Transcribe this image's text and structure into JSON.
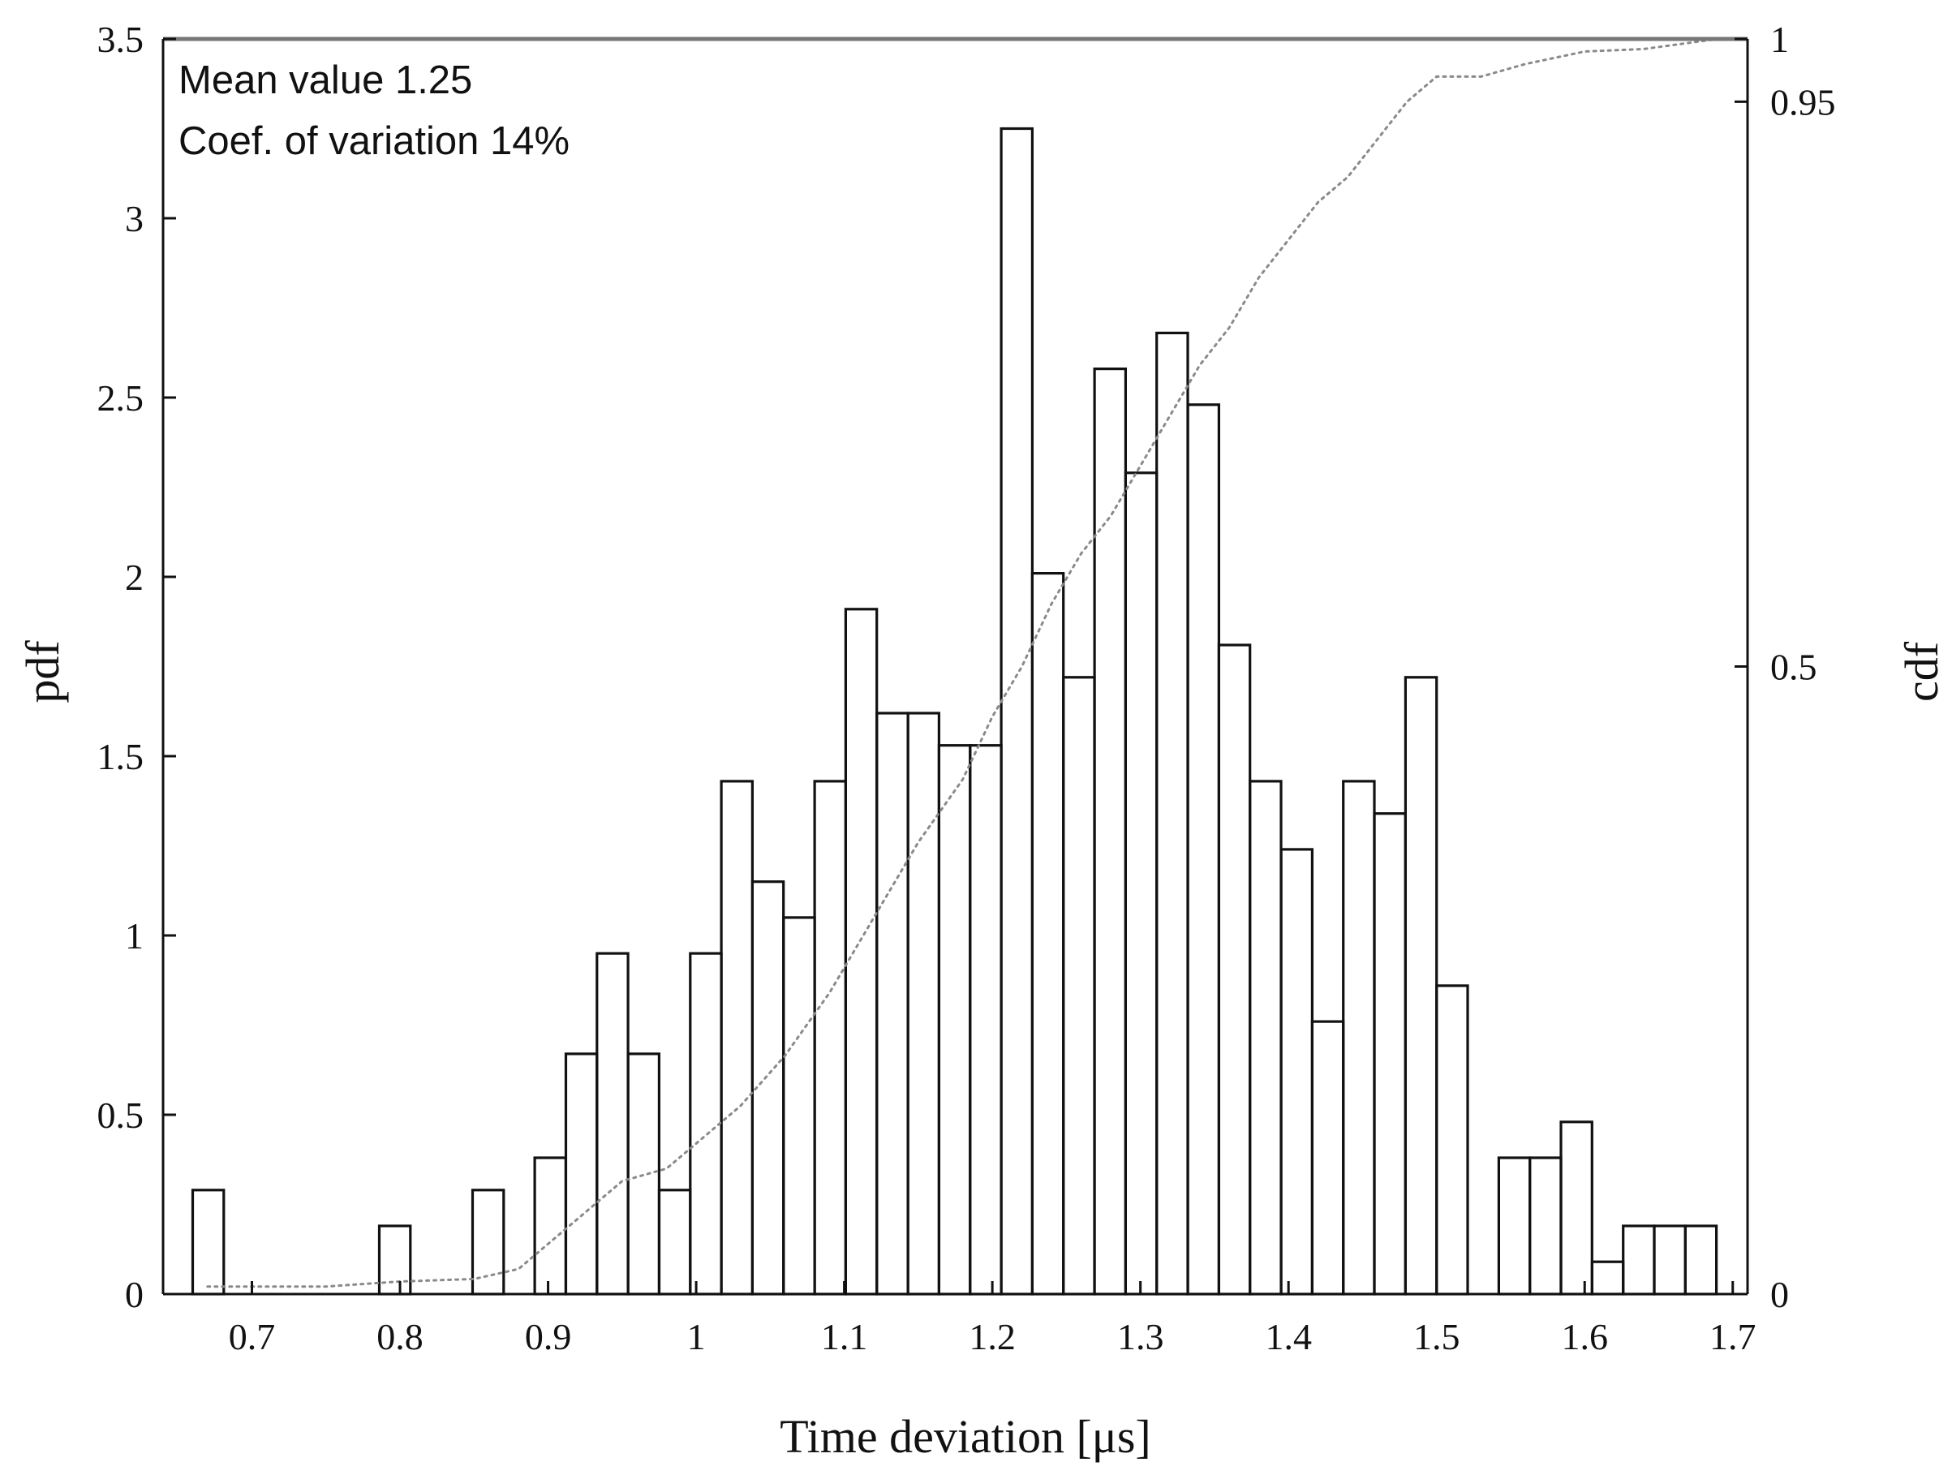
{
  "chart_data": {
    "type": "histogram",
    "title": "",
    "xlabel": "Time deviation [μs]",
    "ylabel_left": "pdf",
    "ylabel_right": "cdf",
    "xlim": [
      0.64,
      1.71
    ],
    "ylim_left": [
      0,
      3.5
    ],
    "ylim_right": [
      0,
      1
    ],
    "x_ticks": [
      0.7,
      0.8,
      0.9,
      1,
      1.1,
      1.2,
      1.3,
      1.4,
      1.5,
      1.6,
      1.7
    ],
    "x_tick_labels": [
      "0.7",
      "0.8",
      "0.9",
      "1",
      "1.1",
      "1.2",
      "1.3",
      "1.4",
      "1.5",
      "1.6",
      "1.7"
    ],
    "y_left_ticks": [
      0,
      0.5,
      1,
      1.5,
      2,
      2.5,
      3,
      3.5
    ],
    "y_left_tick_labels": [
      "0",
      "0.5",
      "1",
      "1.5",
      "2",
      "2.5",
      "3",
      "3.5"
    ],
    "y_right_ticks": [
      0,
      0.5,
      0.95,
      1
    ],
    "y_right_tick_labels": [
      "0",
      "0.5",
      "0.95",
      "1"
    ],
    "grid": false,
    "annotations": [
      "Mean value  1.25",
      "Coef. of variation  14%"
    ],
    "pdf_series": {
      "name": "pdf",
      "bin_edges": [
        0.66,
        0.681,
        0.702,
        0.723,
        0.744,
        0.765,
        0.786,
        0.807,
        0.828,
        0.849,
        0.87,
        0.891,
        0.912,
        0.933,
        0.954,
        0.975,
        0.996,
        1.017,
        1.038,
        1.059,
        1.08,
        1.101,
        1.122,
        1.143,
        1.164,
        1.185,
        1.206,
        1.227,
        1.248,
        1.269,
        1.29,
        1.311,
        1.332,
        1.353,
        1.374,
        1.395,
        1.416,
        1.437,
        1.458,
        1.479,
        1.5,
        1.521,
        1.542,
        1.563,
        1.584,
        1.605,
        1.626,
        1.647,
        1.668,
        1.689
      ],
      "values": [
        0.29,
        0,
        0,
        0,
        0,
        0,
        0.19,
        0,
        0,
        0.29,
        0,
        0.38,
        0.67,
        0.95,
        0.67,
        0.29,
        0.95,
        1.43,
        1.15,
        1.05,
        1.43,
        1.91,
        1.62,
        1.62,
        1.53,
        1.53,
        3.25,
        2.01,
        1.72,
        2.58,
        2.29,
        2.68,
        2.48,
        1.81,
        1.43,
        1.24,
        0.76,
        1.43,
        1.34,
        1.72,
        0.86,
        0,
        0.38,
        0.38,
        0.48,
        0.09,
        0.19,
        0.19,
        0.19
      ]
    },
    "cdf_series": {
      "name": "cdf",
      "style": "dotted",
      "x": [
        0.67,
        0.75,
        0.8,
        0.85,
        0.88,
        0.9,
        0.92,
        0.95,
        0.98,
        1.0,
        1.03,
        1.06,
        1.09,
        1.12,
        1.15,
        1.18,
        1.2,
        1.22,
        1.24,
        1.26,
        1.28,
        1.3,
        1.32,
        1.34,
        1.36,
        1.38,
        1.4,
        1.42,
        1.44,
        1.46,
        1.48,
        1.5,
        1.53,
        1.56,
        1.6,
        1.64,
        1.69
      ],
      "values": [
        0.006,
        0.006,
        0.01,
        0.012,
        0.02,
        0.04,
        0.06,
        0.09,
        0.1,
        0.12,
        0.15,
        0.19,
        0.24,
        0.3,
        0.36,
        0.41,
        0.46,
        0.5,
        0.55,
        0.59,
        0.62,
        0.66,
        0.7,
        0.74,
        0.77,
        0.81,
        0.84,
        0.87,
        0.89,
        0.92,
        0.95,
        0.97,
        0.97,
        0.98,
        0.99,
        0.992,
        1.0
      ]
    }
  }
}
